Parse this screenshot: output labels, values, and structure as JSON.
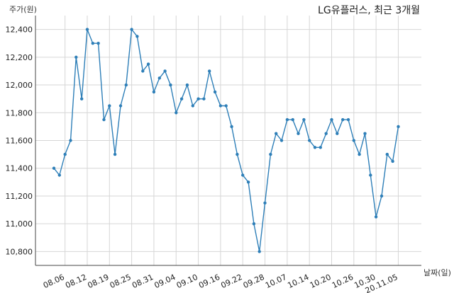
{
  "chart_data": {
    "type": "line",
    "title": "LG유플러스, 최근 3개월",
    "xlabel": "날짜(일)",
    "ylabel": "주가(원)",
    "ylim": [
      10700,
      12500
    ],
    "yticks": [
      10800,
      11000,
      11200,
      11400,
      11600,
      11800,
      12000,
      12200,
      12400
    ],
    "ytick_labels": [
      "10,800",
      "11,000",
      "11,200",
      "11,400",
      "11,600",
      "11,800",
      "12,000",
      "12,200",
      "12,400"
    ],
    "xtick_labels": [
      "08.06",
      "08.12",
      "08.19",
      "08.25",
      "08.31",
      "09.04",
      "09.10",
      "09.16",
      "09.22",
      "09.28",
      "10.07",
      "10.14",
      "10.20",
      "10.26",
      "10.30",
      "20.11.05"
    ],
    "xtick_positions": [
      2,
      6,
      10,
      14,
      18,
      22,
      26,
      30,
      34,
      38,
      42,
      46,
      50,
      54,
      58,
      62
    ],
    "grid": true,
    "color": "#2e7fb8",
    "series": [
      {
        "values": [
          11400,
          11350,
          11500,
          11600,
          12200,
          11900,
          12400,
          12300,
          12300,
          11750,
          11850,
          11500,
          11850,
          12000,
          12400,
          12350,
          12100,
          12150,
          11950,
          12050,
          12100,
          12000,
          11800,
          11900,
          12000,
          11850,
          11900,
          11900,
          12100,
          11950,
          11850,
          11850,
          11700,
          11500,
          11350,
          11300,
          11000,
          10800,
          11150,
          11500,
          11650,
          11600,
          11750,
          11750,
          11650,
          11750,
          11600,
          11550,
          11550,
          11650,
          11750,
          11650,
          11750,
          11750,
          11600,
          11500,
          11650,
          11350,
          11050,
          11200,
          11500,
          11450,
          11700
        ]
      }
    ]
  }
}
